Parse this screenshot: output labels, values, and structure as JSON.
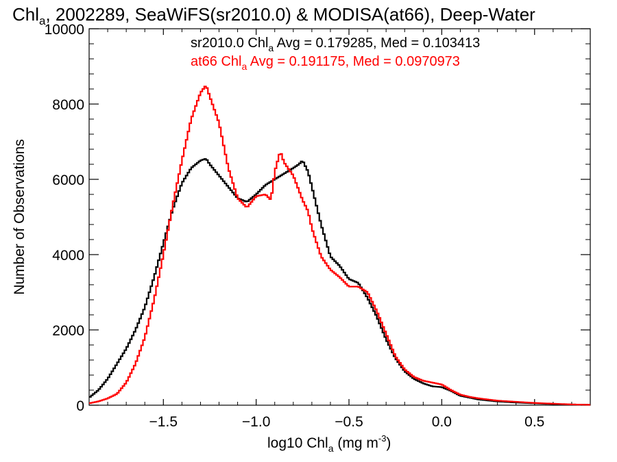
{
  "title": {
    "pre": "Chl",
    "sub": "a",
    "post": ", 2002289, SeaWiFS(sr2010.0) & MODISA(at66), Deep-Water"
  },
  "legend": [
    {
      "pre": "sr2010.0 Chl",
      "sub": "a",
      "post": " Avg = 0.179285, Med = 0.103413",
      "color": "#000000"
    },
    {
      "pre": "at66 Chl",
      "sub": "a",
      "post": " Avg = 0.191175, Med = 0.0970973",
      "color": "#ff0000"
    }
  ],
  "xlabel": {
    "pre": "log10 Chl",
    "sub": "a",
    "post": " (mg m",
    "sup": "-3",
    "end": ")"
  },
  "ylabel": "Number of Observations",
  "chart_data": {
    "type": "line",
    "step": true,
    "xlim": [
      -1.9,
      0.8
    ],
    "ylim": [
      0,
      10000
    ],
    "xticks": [
      -1.5,
      -1.0,
      -0.5,
      0.0,
      0.5
    ],
    "xtick_labels": [
      "−1.5",
      "−1.0",
      "−0.5",
      "0.0",
      "0.5"
    ],
    "yticks": [
      0,
      2000,
      4000,
      6000,
      8000,
      10000
    ],
    "ytick_labels": [
      "0",
      "2000",
      "4000",
      "6000",
      "8000",
      "10000"
    ],
    "series": [
      {
        "name": "sr2010.0",
        "color": "#000000",
        "points": [
          [
            -1.9,
            200
          ],
          [
            -1.85,
            400
          ],
          [
            -1.8,
            700
          ],
          [
            -1.75,
            1100
          ],
          [
            -1.7,
            1500
          ],
          [
            -1.65,
            2000
          ],
          [
            -1.6,
            2600
          ],
          [
            -1.55,
            3400
          ],
          [
            -1.5,
            4300
          ],
          [
            -1.45,
            5200
          ],
          [
            -1.4,
            5900
          ],
          [
            -1.35,
            6300
          ],
          [
            -1.3,
            6500
          ],
          [
            -1.27,
            6550
          ],
          [
            -1.25,
            6400
          ],
          [
            -1.2,
            6100
          ],
          [
            -1.15,
            5800
          ],
          [
            -1.1,
            5500
          ],
          [
            -1.05,
            5400
          ],
          [
            -1.0,
            5600
          ],
          [
            -0.95,
            5850
          ],
          [
            -0.9,
            6000
          ],
          [
            -0.85,
            6150
          ],
          [
            -0.8,
            6300
          ],
          [
            -0.77,
            6400
          ],
          [
            -0.75,
            6500
          ],
          [
            -0.72,
            6200
          ],
          [
            -0.7,
            5800
          ],
          [
            -0.65,
            4800
          ],
          [
            -0.6,
            3950
          ],
          [
            -0.55,
            3700
          ],
          [
            -0.5,
            3350
          ],
          [
            -0.45,
            3250
          ],
          [
            -0.4,
            2850
          ],
          [
            -0.35,
            2350
          ],
          [
            -0.3,
            1750
          ],
          [
            -0.25,
            1250
          ],
          [
            -0.2,
            900
          ],
          [
            -0.15,
            700
          ],
          [
            -0.1,
            580
          ],
          [
            -0.05,
            500
          ],
          [
            0.0,
            480
          ],
          [
            0.05,
            380
          ],
          [
            0.1,
            250
          ],
          [
            0.15,
            200
          ],
          [
            0.2,
            150
          ],
          [
            0.3,
            100
          ],
          [
            0.4,
            70
          ],
          [
            0.5,
            50
          ],
          [
            0.6,
            30
          ],
          [
            0.7,
            20
          ],
          [
            0.8,
            10
          ]
        ]
      },
      {
        "name": "at66",
        "color": "#ff0000",
        "points": [
          [
            -1.9,
            50
          ],
          [
            -1.85,
            100
          ],
          [
            -1.8,
            180
          ],
          [
            -1.75,
            300
          ],
          [
            -1.7,
            600
          ],
          [
            -1.65,
            1100
          ],
          [
            -1.6,
            1800
          ],
          [
            -1.55,
            2800
          ],
          [
            -1.5,
            4000
          ],
          [
            -1.45,
            5300
          ],
          [
            -1.4,
            6500
          ],
          [
            -1.35,
            7600
          ],
          [
            -1.3,
            8300
          ],
          [
            -1.27,
            8500
          ],
          [
            -1.25,
            8200
          ],
          [
            -1.2,
            7500
          ],
          [
            -1.15,
            6300
          ],
          [
            -1.1,
            5500
          ],
          [
            -1.05,
            5250
          ],
          [
            -1.0,
            5550
          ],
          [
            -0.95,
            5600
          ],
          [
            -0.92,
            5450
          ],
          [
            -0.9,
            6200
          ],
          [
            -0.87,
            6750
          ],
          [
            -0.85,
            6450
          ],
          [
            -0.8,
            6100
          ],
          [
            -0.75,
            5450
          ],
          [
            -0.72,
            5150
          ],
          [
            -0.7,
            4700
          ],
          [
            -0.65,
            3950
          ],
          [
            -0.6,
            3600
          ],
          [
            -0.55,
            3400
          ],
          [
            -0.5,
            3150
          ],
          [
            -0.45,
            3150
          ],
          [
            -0.4,
            3000
          ],
          [
            -0.35,
            2500
          ],
          [
            -0.3,
            1900
          ],
          [
            -0.25,
            1300
          ],
          [
            -0.2,
            950
          ],
          [
            -0.15,
            750
          ],
          [
            -0.1,
            650
          ],
          [
            -0.05,
            600
          ],
          [
            0.0,
            550
          ],
          [
            0.05,
            400
          ],
          [
            0.1,
            280
          ],
          [
            0.15,
            220
          ],
          [
            0.2,
            180
          ],
          [
            0.3,
            120
          ],
          [
            0.4,
            90
          ],
          [
            0.5,
            60
          ],
          [
            0.6,
            40
          ],
          [
            0.7,
            20
          ],
          [
            0.8,
            10
          ]
        ]
      }
    ]
  }
}
